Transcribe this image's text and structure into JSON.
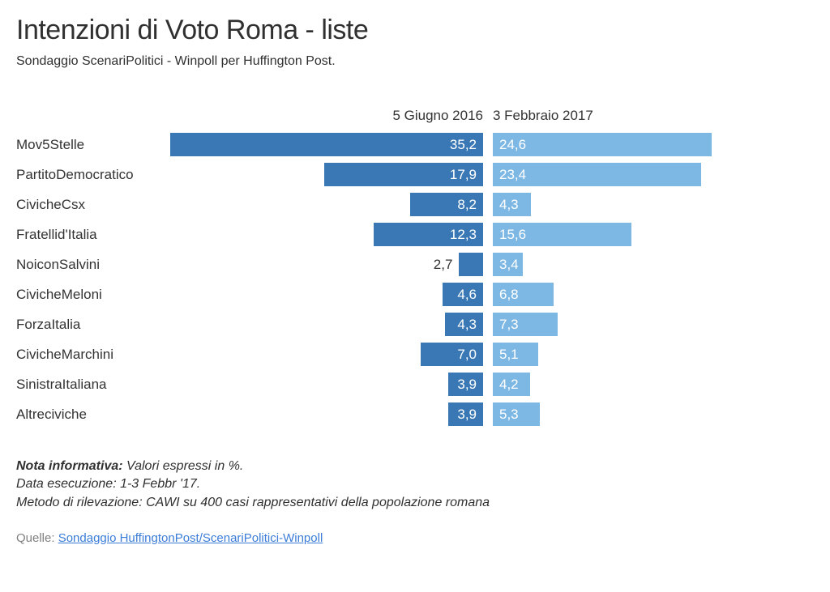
{
  "title": "Intenzioni di Voto Roma - liste",
  "subtitle": "Sondaggio ScenariPolitici - Winpoll per Huffington Post.",
  "chart": {
    "type": "diverging-bar",
    "max_value": 35.2,
    "left": {
      "header": "5 Giugno 2016",
      "color": "#3a78b5"
    },
    "right": {
      "header": "3 Febbraio 2017",
      "color": "#7db7e3"
    },
    "label_threshold_outside": 3.0,
    "categories": [
      {
        "label": "Mov5Stelle",
        "left": "35,2",
        "left_v": 35.2,
        "right": "24,6",
        "right_v": 24.6
      },
      {
        "label": "PartitoDemocratico",
        "left": "17,9",
        "left_v": 17.9,
        "right": "23,4",
        "right_v": 23.4
      },
      {
        "label": "CivicheCsx",
        "left": "8,2",
        "left_v": 8.2,
        "right": "4,3",
        "right_v": 4.3
      },
      {
        "label": "Fratellid'Italia",
        "left": "12,3",
        "left_v": 12.3,
        "right": "15,6",
        "right_v": 15.6
      },
      {
        "label": "NoiconSalvini",
        "left": "2,7",
        "left_v": 2.7,
        "right": "3,4",
        "right_v": 3.4
      },
      {
        "label": "CivicheMeloni",
        "left": "4,6",
        "left_v": 4.6,
        "right": "6,8",
        "right_v": 6.8
      },
      {
        "label": "ForzaItalia",
        "left": "4,3",
        "left_v": 4.3,
        "right": "7,3",
        "right_v": 7.3
      },
      {
        "label": "CivicheMarchini",
        "left": "7,0",
        "left_v": 7.0,
        "right": "5,1",
        "right_v": 5.1
      },
      {
        "label": "SinistraItaliana",
        "left": "3,9",
        "left_v": 3.9,
        "right": "4,2",
        "right_v": 4.2
      },
      {
        "label": "Altreciviche",
        "left": "3,9",
        "left_v": 3.9,
        "right": "5,3",
        "right_v": 5.3
      }
    ]
  },
  "note": {
    "lead": "Nota informativa:",
    "l1": " Valori espressi in %.",
    "l2": "Data esecuzione: 1-3 Febbr '17.",
    "l3": "Metodo di rilevazione: CAWI su 400 casi rappresentativi della popolazione romana"
  },
  "source": {
    "prefix": "Quelle: ",
    "link": "Sondaggio HuffingtonPost/ScenariPolitici-Winpoll"
  }
}
